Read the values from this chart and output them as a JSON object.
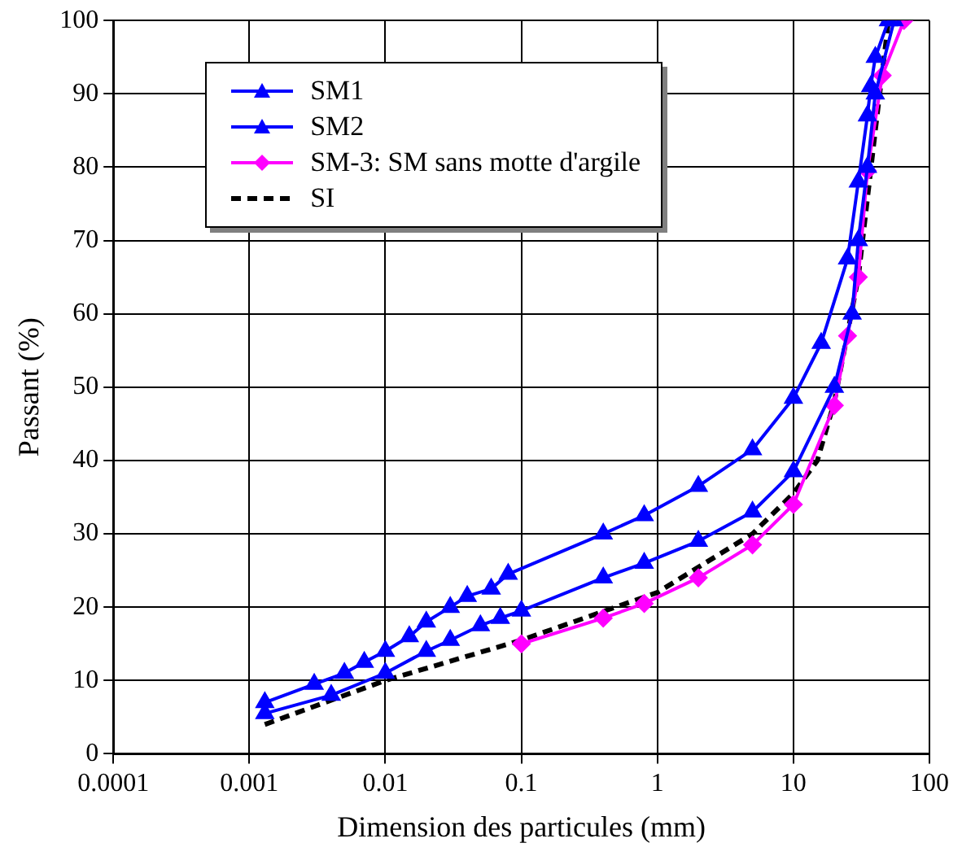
{
  "chart_data": {
    "type": "line",
    "xlabel": "Dimension des particules (mm)",
    "ylabel": "Passant (%)",
    "log": "x",
    "xlim": [
      0.0001,
      100
    ],
    "xticks": [
      0.0001,
      0.001,
      0.01,
      0.1,
      1,
      10,
      100
    ],
    "ylim": [
      0,
      100
    ],
    "yticks": [
      0,
      10,
      20,
      30,
      40,
      50,
      60,
      70,
      80,
      90,
      100
    ],
    "grid": true,
    "legend": "top left",
    "series": [
      {
        "name": "SM1",
        "color": "#0000ff",
        "marker": "triangle",
        "x": [
          0.0013,
          0.003,
          0.005,
          0.007,
          0.01,
          0.015,
          0.02,
          0.03,
          0.04,
          0.06,
          0.08,
          0.4,
          0.8,
          2,
          5,
          10,
          16,
          25,
          30,
          35,
          37,
          40,
          50
        ],
        "values": [
          7,
          9.5,
          11,
          12.5,
          14,
          16,
          18,
          20,
          21.5,
          22.5,
          24.5,
          30,
          32.5,
          36.5,
          41.5,
          48.5,
          56,
          67.5,
          78,
          87,
          91,
          95,
          100
        ]
      },
      {
        "name": "SM2",
        "color": "#0000ff",
        "marker": "triangle",
        "x": [
          0.0013,
          0.004,
          0.01,
          0.02,
          0.03,
          0.05,
          0.07,
          0.1,
          0.4,
          0.8,
          2,
          5,
          10,
          20,
          27,
          30,
          35,
          40,
          55
        ],
        "values": [
          5.5,
          8,
          11,
          14,
          15.5,
          17.5,
          18.5,
          19.5,
          24,
          26,
          29,
          33,
          38.5,
          50,
          60,
          70,
          80,
          90,
          100
        ]
      },
      {
        "name": "SM-3: SM sans motte d'argile",
        "color": "#ff00ff",
        "marker": "diamond",
        "x": [
          0.1,
          0.4,
          0.8,
          2,
          5,
          10,
          20,
          25,
          30,
          35,
          45,
          65
        ],
        "values": [
          15,
          18.5,
          20.5,
          24,
          28.5,
          34,
          47.5,
          57,
          65,
          79.5,
          92.5,
          100
        ]
      },
      {
        "name": "SI",
        "color": "#000000",
        "marker": "none",
        "line_style": "dashed",
        "x": [
          0.0013,
          0.01,
          0.1,
          1,
          5,
          10,
          15,
          20,
          30,
          40,
          50
        ],
        "values": [
          4,
          10,
          15.5,
          22,
          30,
          35.5,
          40,
          48,
          65,
          85,
          100
        ]
      }
    ]
  }
}
